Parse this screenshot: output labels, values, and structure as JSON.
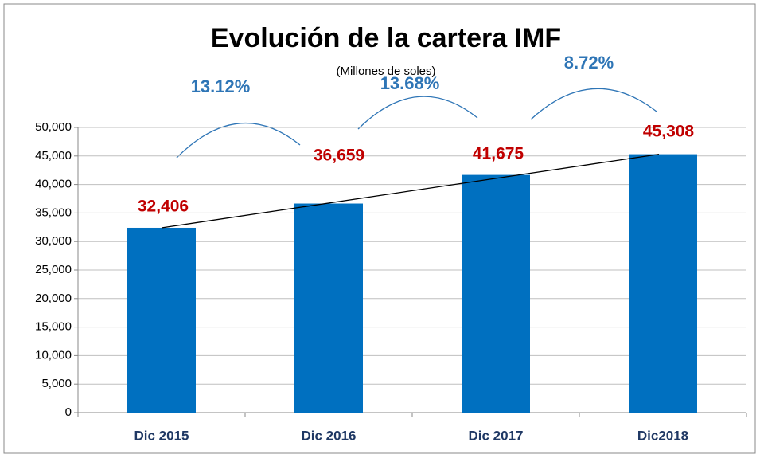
{
  "chart_data": {
    "type": "bar",
    "title": "Evolución de la cartera IMF",
    "subtitle": "(Millones de soles)",
    "categories": [
      "Dic 2015",
      "Dic 2016",
      "Dic 2017",
      "Dic2018"
    ],
    "values": [
      32406,
      36659,
      41675,
      45308
    ],
    "value_labels": [
      "32,406",
      "36,659",
      "41,675",
      "45,308"
    ],
    "color": "#0070c0",
    "ylim": [
      0,
      50000
    ],
    "yticks": [
      0,
      {
        "value": 5000,
        "label": "5,000"
      },
      {
        "value": 10000,
        "label": "10,000"
      },
      {
        "value": 15000,
        "label": "15,000"
      },
      {
        "value": 20000,
        "label": "20,000"
      },
      {
        "value": 25000,
        "label": "25,000"
      },
      {
        "value": 30000,
        "label": "30,000"
      },
      {
        "value": 35000,
        "label": "35,000"
      },
      {
        "value": 40000,
        "label": "40,000"
      },
      {
        "value": 45000,
        "label": "45,000"
      },
      {
        "value": 50000,
        "label": "50,000"
      }
    ],
    "grid": true,
    "annotations": [
      "13.12%",
      "13.68%",
      "8.72%"
    ]
  }
}
